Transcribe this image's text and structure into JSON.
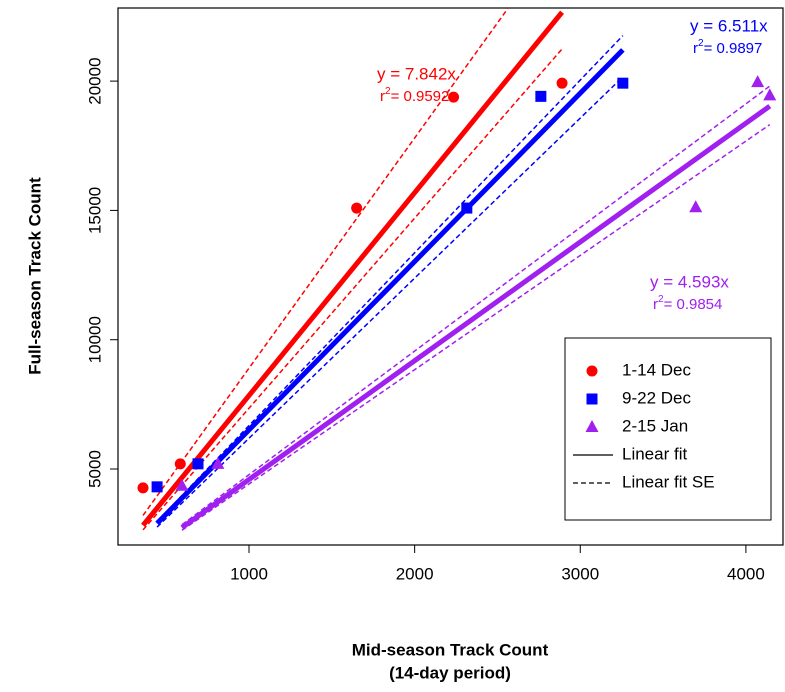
{
  "chart_data": {
    "type": "scatter",
    "x_label": [
      "Mid-season Track Count",
      "(14-day period)"
    ],
    "y_label": "Full-season Track Count",
    "xlim": [
      209,
      4224
    ],
    "ylim": [
      2061,
      22827
    ],
    "xticks": [
      1000,
      2000,
      3000,
      4000
    ],
    "yticks": [
      5000,
      10000,
      15000,
      20000
    ],
    "series": [
      {
        "name": "1-14 Dec",
        "color": "#ff0000",
        "marker": "circle",
        "x": [
          360,
          585,
          1650,
          2235,
          2890
        ],
        "values": [
          4270,
          5200,
          15090,
          19380,
          19920
        ],
        "fit": {
          "slope": 7.842,
          "se_slopes": [
            7.35,
            8.9
          ],
          "equation": "y = 7.842x",
          "r": "r",
          "sup": "2",
          "r2": "= 0.9592"
        }
      },
      {
        "name": "9-22 Dec",
        "color": "#0000ff",
        "marker": "square",
        "x": [
          445,
          692,
          2315,
          2762,
          3257
        ],
        "values": [
          4310,
          5200,
          15090,
          19410,
          19920
        ],
        "fit": {
          "slope": 6.511,
          "se_slopes": [
            6.19,
            6.68
          ],
          "equation": "y = 6.511x",
          "r": "r",
          "sup": "2",
          "r2": "= 0.9897"
        }
      },
      {
        "name": "2-15 Jan",
        "color": "#a020f0",
        "marker": "triangle",
        "x": [
          595,
          812,
          3697,
          4071,
          4144
        ],
        "values": [
          4350,
          5200,
          15120,
          19960,
          19450
        ],
        "fit": {
          "slope": 4.593,
          "se_slopes": [
            4.42,
            4.78
          ],
          "equation": "y = 4.593x",
          "r": "r",
          "sup": "2",
          "r2": "= 0.9854"
        }
      }
    ],
    "legend_extra": [
      "Linear fit",
      "Linear fit SE"
    ],
    "legend_position": "lower right"
  }
}
